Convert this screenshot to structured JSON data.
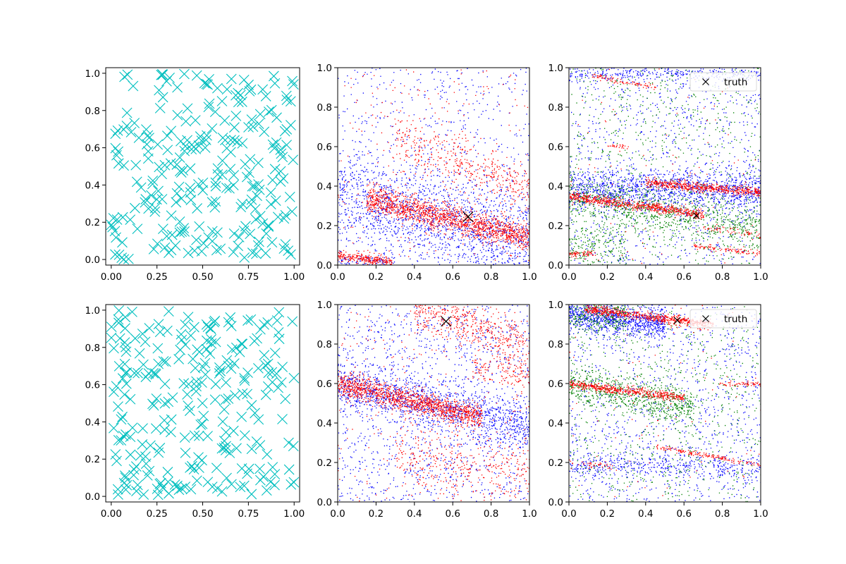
{
  "figure": {
    "background": "#ffffff"
  },
  "colors": {
    "cyan": "#00bfbf",
    "blue": "#0000ff",
    "red": "#ff0000",
    "green": "#008000",
    "black": "#000000"
  },
  "chart_data": [
    {
      "id": "top-left",
      "type": "scatter",
      "title": "",
      "xlabel": "",
      "ylabel": "",
      "xlim": [
        -0.03,
        1.03
      ],
      "ylim": [
        -0.03,
        1.03
      ],
      "xticks": [
        "0.00",
        "0.25",
        "0.50",
        "0.75",
        "1.00"
      ],
      "xtick_values": [
        0,
        0.25,
        0.5,
        0.75,
        1.0
      ],
      "yticks": [
        "0.0",
        "0.2",
        "0.4",
        "0.6",
        "0.8",
        "1.0"
      ],
      "ytick_values": [
        0,
        0.2,
        0.4,
        0.6,
        0.8,
        1.0
      ],
      "series": [
        {
          "name": "samples",
          "marker": "x",
          "color": "#00bfbf",
          "count": 260,
          "distribution": "uniform",
          "seed": 11
        }
      ],
      "legend": null
    },
    {
      "id": "top-middle",
      "type": "scatter",
      "title": "",
      "xlabel": "",
      "ylabel": "",
      "xlim": [
        0,
        1
      ],
      "ylim": [
        0,
        1
      ],
      "xticks": [
        "0.0",
        "0.2",
        "0.4",
        "0.6",
        "0.8",
        "1.0"
      ],
      "xtick_values": [
        0,
        0.2,
        0.4,
        0.6,
        0.8,
        1.0
      ],
      "yticks": [
        "0.0",
        "0.2",
        "0.4",
        "0.6",
        "0.8",
        "1.0"
      ],
      "ytick_values": [
        0,
        0.2,
        0.4,
        0.6,
        0.8,
        1.0
      ],
      "series": [
        {
          "name": "blue",
          "color": "#0000ff",
          "marker": "dot",
          "bands": [
            {
              "y0": 0.36,
              "y1": 0.12,
              "width": 0.12,
              "count": 1500
            },
            {
              "y0": 0.02,
              "y1": 0.02,
              "width": 0.015,
              "x0": 0.0,
              "x1": 0.3,
              "count": 80
            }
          ],
          "uniform": 700
        },
        {
          "name": "red",
          "color": "#ff0000",
          "marker": "dot",
          "bands": [
            {
              "y0": 0.34,
              "y1": 0.14,
              "width": 0.035,
              "x0": 0.15,
              "x1": 1.0,
              "count": 1500
            },
            {
              "y0": 0.045,
              "y1": 0.02,
              "width": 0.012,
              "x0": 0.0,
              "x1": 0.28,
              "count": 250
            },
            {
              "y0": 0.65,
              "y1": 0.38,
              "width": 0.06,
              "x0": 0.3,
              "x1": 1.0,
              "count": 400
            }
          ],
          "uniform": 250
        }
      ],
      "truth": {
        "x": 0.68,
        "y": 0.245,
        "marker": "x",
        "color": "#000000",
        "size": "large"
      },
      "legend": null
    },
    {
      "id": "top-right",
      "type": "scatter",
      "title": "",
      "xlabel": "",
      "ylabel": "",
      "xlim": [
        0,
        1
      ],
      "ylim": [
        0,
        1
      ],
      "xticks": [
        "0.0",
        "0.2",
        "0.4",
        "0.6",
        "0.8",
        "1.0"
      ],
      "xtick_values": [
        0,
        0.2,
        0.4,
        0.6,
        0.8,
        1.0
      ],
      "yticks": [
        "0.0",
        "0.2",
        "0.4",
        "0.6",
        "0.8",
        "1.0"
      ],
      "ytick_values": [
        0,
        0.2,
        0.4,
        0.6,
        0.8,
        1.0
      ],
      "series": [
        {
          "name": "blue",
          "color": "#0000ff",
          "marker": "dot",
          "bands": [
            {
              "y0": 0.38,
              "y1": 0.38,
              "width": 0.05,
              "count": 1300
            },
            {
              "y0": 0.97,
              "y1": 0.97,
              "width": 0.02,
              "count": 300
            }
          ],
          "uniform": 900
        },
        {
          "name": "green",
          "color": "#008000",
          "marker": "dot",
          "bands": [
            {
              "y0": 0.34,
              "y1": 0.2,
              "width": 0.06,
              "count": 900
            },
            {
              "y0": 0.1,
              "y1": 0.1,
              "width": 0.05,
              "x0": 0.0,
              "x1": 0.3,
              "count": 200
            }
          ],
          "uniform": 700
        },
        {
          "name": "red",
          "color": "#ff0000",
          "marker": "dot",
          "bands": [
            {
              "y0": 0.42,
              "y1": 0.37,
              "width": 0.012,
              "x0": 0.4,
              "x1": 1.0,
              "count": 550
            },
            {
              "y0": 0.35,
              "y1": 0.26,
              "width": 0.012,
              "x0": 0.0,
              "x1": 0.7,
              "count": 650
            },
            {
              "y0": 0.06,
              "y1": 0.06,
              "width": 0.01,
              "x0": 0.0,
              "x1": 0.14,
              "count": 60
            },
            {
              "y0": 0.1,
              "y1": 0.06,
              "width": 0.008,
              "x0": 0.65,
              "x1": 1.0,
              "count": 100
            },
            {
              "y0": 0.96,
              "y1": 0.9,
              "width": 0.008,
              "x0": 0.12,
              "x1": 0.45,
              "count": 90
            },
            {
              "y0": 0.61,
              "y1": 0.6,
              "width": 0.006,
              "x0": 0.2,
              "x1": 0.32,
              "count": 25
            },
            {
              "y0": 0.2,
              "y1": 0.15,
              "width": 0.01,
              "x0": 0.7,
              "x1": 1.0,
              "count": 60
            }
          ],
          "uniform": 80
        }
      ],
      "truth": {
        "x": 0.665,
        "y": 0.25,
        "marker": "x",
        "color": "#000000",
        "size": "small"
      },
      "legend": {
        "position": "top-right",
        "entries": [
          {
            "label": "truth",
            "marker": "x",
            "color": "#000000"
          }
        ]
      }
    },
    {
      "id": "bottom-left",
      "type": "scatter",
      "title": "",
      "xlabel": "",
      "ylabel": "",
      "xlim": [
        -0.03,
        1.03
      ],
      "ylim": [
        -0.03,
        1.03
      ],
      "xticks": [
        "0.00",
        "0.25",
        "0.50",
        "0.75",
        "1.00"
      ],
      "xtick_values": [
        0,
        0.25,
        0.5,
        0.75,
        1.0
      ],
      "yticks": [
        "0.0",
        "0.2",
        "0.4",
        "0.6",
        "0.8",
        "1.0"
      ],
      "ytick_values": [
        0,
        0.2,
        0.4,
        0.6,
        0.8,
        1.0
      ],
      "series": [
        {
          "name": "samples",
          "marker": "x",
          "color": "#00bfbf",
          "count": 260,
          "distribution": "uniform",
          "seed": 23
        }
      ],
      "legend": null
    },
    {
      "id": "bottom-middle",
      "type": "scatter",
      "title": "",
      "xlabel": "",
      "ylabel": "",
      "xlim": [
        0,
        1
      ],
      "ylim": [
        0,
        1
      ],
      "xticks": [
        "0.0",
        "0.2",
        "0.4",
        "0.6",
        "0.8",
        "1.0"
      ],
      "xtick_values": [
        0,
        0.2,
        0.4,
        0.6,
        0.8,
        1.0
      ],
      "yticks": [
        "0.0",
        "0.2",
        "0.4",
        "0.6",
        "0.8",
        "1.0"
      ],
      "ytick_values": [
        0,
        0.2,
        0.4,
        0.6,
        0.8,
        1.0
      ],
      "series": [
        {
          "name": "blue",
          "color": "#0000ff",
          "marker": "dot",
          "bands": [
            {
              "y0": 0.6,
              "y1": 0.38,
              "width": 0.06,
              "count": 1200
            }
          ],
          "uniform": 1300
        },
        {
          "name": "red",
          "color": "#ff0000",
          "marker": "dot",
          "bands": [
            {
              "y0": 0.6,
              "y1": 0.43,
              "width": 0.03,
              "x0": 0.0,
              "x1": 0.75,
              "count": 1300
            },
            {
              "y0": 1.0,
              "y1": 0.78,
              "width": 0.06,
              "x0": 0.4,
              "x1": 1.0,
              "count": 500
            },
            {
              "y0": 0.25,
              "y1": 0.12,
              "width": 0.08,
              "x0": 0.3,
              "x1": 1.0,
              "count": 350
            },
            {
              "y0": 0.7,
              "y1": 0.62,
              "width": 0.04,
              "x0": 0.7,
              "x1": 1.0,
              "count": 120
            }
          ],
          "uniform": 300
        }
      ],
      "truth": {
        "x": 0.565,
        "y": 0.915,
        "marker": "x",
        "color": "#000000",
        "size": "large"
      },
      "legend": null
    },
    {
      "id": "bottom-right",
      "type": "scatter",
      "title": "",
      "xlabel": "",
      "ylabel": "",
      "xlim": [
        0,
        1
      ],
      "ylim": [
        0,
        1
      ],
      "xticks": [
        "0.0",
        "0.2",
        "0.4",
        "0.6",
        "0.8",
        "1.0"
      ],
      "xtick_values": [
        0,
        0.2,
        0.4,
        0.6,
        0.8,
        1.0
      ],
      "yticks": [
        "0.0",
        "0.2",
        "0.4",
        "0.6",
        "0.8",
        "1.0"
      ],
      "ytick_values": [
        0,
        0.2,
        0.4,
        0.6,
        0.8,
        1.0
      ],
      "series": [
        {
          "name": "blue",
          "color": "#0000ff",
          "marker": "dot",
          "bands": [
            {
              "y0": 0.95,
              "y1": 0.9,
              "width": 0.04,
              "x0": 0.0,
              "x1": 0.5,
              "count": 900
            },
            {
              "y0": 0.18,
              "y1": 0.18,
              "width": 0.03,
              "count": 400
            }
          ],
          "uniform": 1100
        },
        {
          "name": "green",
          "color": "#008000",
          "marker": "dot",
          "bands": [
            {
              "y0": 0.6,
              "y1": 0.48,
              "width": 0.05,
              "x0": 0.0,
              "x1": 0.65,
              "count": 700
            },
            {
              "y0": 0.95,
              "y1": 0.95,
              "width": 0.05,
              "x0": 0.0,
              "x1": 0.3,
              "count": 300
            }
          ],
          "uniform": 700
        },
        {
          "name": "red",
          "color": "#ff0000",
          "marker": "dot",
          "bands": [
            {
              "y0": 0.98,
              "y1": 0.9,
              "width": 0.012,
              "x0": 0.08,
              "x1": 0.75,
              "count": 650
            },
            {
              "y0": 0.6,
              "y1": 0.53,
              "width": 0.01,
              "x0": 0.0,
              "x1": 0.6,
              "count": 500
            },
            {
              "y0": 0.6,
              "y1": 0.6,
              "width": 0.006,
              "x0": 0.78,
              "x1": 1.0,
              "count": 60
            },
            {
              "y0": 0.28,
              "y1": 0.19,
              "width": 0.006,
              "x0": 0.45,
              "x1": 1.0,
              "count": 160
            },
            {
              "y0": 0.2,
              "y1": 0.18,
              "width": 0.008,
              "x0": 0.0,
              "x1": 0.25,
              "count": 40
            }
          ],
          "uniform": 80
        }
      ],
      "truth": {
        "x": 0.565,
        "y": 0.92,
        "marker": "x",
        "color": "#000000",
        "size": "small"
      },
      "legend": {
        "position": "top-right",
        "entries": [
          {
            "label": "truth",
            "marker": "x",
            "color": "#000000"
          }
        ]
      }
    }
  ]
}
